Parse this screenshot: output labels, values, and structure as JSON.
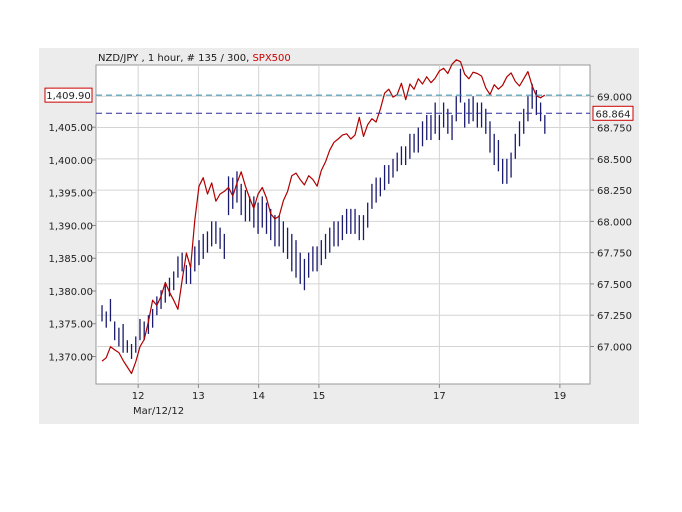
{
  "header": {
    "symbol": "NZD/JPY",
    "details": " , 1 hour, # 135 / 300, ",
    "compare": "SPX500"
  },
  "colors": {
    "price_bars": "#1a1a6e",
    "compare_line": "#b00000",
    "panel_bg": "#ececec",
    "plot_bg": "#ffffff",
    "grid": "#d4d4d4",
    "left_last_line": "#2f8ba8",
    "right_last_line": "#2b2b9a",
    "badge_border": "#cc0000"
  },
  "chart_data": {
    "type": "line",
    "title": "NZD/JPY , 1 hour, # 135 / 300, SPX500",
    "xlabel": "",
    "ylabel": "",
    "grid": true,
    "x_tick_labels": [
      "12",
      "13",
      "14",
      "15",
      "17",
      "19"
    ],
    "x_date_label": "Mar/12/12",
    "x_range": [
      11.3,
      19.5
    ],
    "y_left": {
      "range": [
        1365.8,
        1414.5
      ],
      "ticks": [
        1370.0,
        1375.0,
        1380.0,
        1385.0,
        1390.0,
        1395.0,
        1400.0,
        1405.0
      ],
      "tick_labels": [
        "1,370.00",
        "1,375.00",
        "1,380.00",
        "1,385.00",
        "1,390.00",
        "1,395.00",
        "1,400.00",
        "1,405.00"
      ],
      "last_value": 1409.9,
      "last_label": "1,409.90"
    },
    "y_right": {
      "range": [
        66.7,
        69.25
      ],
      "ticks": [
        67.0,
        67.25,
        67.5,
        67.75,
        68.0,
        68.25,
        68.5,
        68.75,
        69.0
      ],
      "tick_labels": [
        "67.000",
        "67.250",
        "67.500",
        "67.750",
        "68.000",
        "68.250",
        "68.500",
        "68.750",
        "69.000"
      ],
      "last_value": 68.864,
      "last_label": "68.864"
    },
    "series": [
      {
        "axis": "right",
        "style": "bars",
        "x": [
          11.4,
          11.47,
          11.54,
          11.61,
          11.68,
          11.75,
          11.82,
          11.89,
          11.96,
          12.03,
          12.1,
          12.17,
          12.24,
          12.31,
          12.38,
          12.45,
          12.52,
          12.59,
          12.66,
          12.73,
          12.8,
          12.87,
          12.94,
          13.01,
          13.08,
          13.15,
          13.22,
          13.29,
          13.36,
          13.43,
          13.5,
          13.57,
          13.64,
          13.71,
          13.78,
          13.85,
          13.92,
          13.99,
          14.06,
          14.13,
          14.2,
          14.27,
          14.34,
          14.41,
          14.48,
          14.55,
          14.62,
          14.69,
          14.76,
          14.83,
          14.9,
          14.97,
          15.04,
          15.11,
          15.18,
          15.25,
          15.32,
          15.39,
          15.46,
          15.53,
          15.6,
          15.67,
          15.74,
          15.81,
          15.88,
          15.95,
          16.02,
          16.09,
          16.16,
          16.23,
          16.3,
          16.37,
          16.44,
          16.51,
          16.58,
          16.65,
          16.72,
          16.79,
          16.86,
          16.93,
          17.0,
          17.07,
          17.14,
          17.21,
          17.28,
          17.35,
          17.42,
          17.49,
          17.56,
          17.63,
          17.7,
          17.77,
          17.84,
          17.91,
          17.98,
          18.05,
          18.12,
          18.19,
          18.26,
          18.33,
          18.4,
          18.47,
          18.54,
          18.61,
          18.68,
          18.75
        ],
        "high": [
          67.33,
          67.28,
          67.38,
          67.2,
          67.15,
          67.18,
          67.05,
          67.02,
          67.08,
          67.22,
          67.2,
          67.25,
          67.3,
          67.4,
          67.45,
          67.5,
          67.55,
          67.6,
          67.72,
          67.75,
          67.65,
          67.65,
          67.8,
          67.85,
          67.9,
          67.92,
          68.0,
          68.0,
          67.95,
          67.9,
          68.36,
          68.35,
          68.4,
          68.3,
          68.25,
          68.2,
          68.2,
          68.15,
          68.2,
          68.15,
          68.1,
          68.05,
          68.05,
          68.0,
          67.95,
          67.9,
          67.85,
          67.75,
          67.7,
          67.75,
          67.8,
          67.8,
          67.85,
          67.9,
          67.95,
          68.0,
          68.0,
          68.05,
          68.1,
          68.1,
          68.1,
          68.05,
          68.05,
          68.15,
          68.3,
          68.35,
          68.35,
          68.45,
          68.45,
          68.5,
          68.55,
          68.6,
          68.6,
          68.7,
          68.7,
          68.75,
          68.8,
          68.85,
          68.85,
          68.95,
          68.85,
          68.95,
          68.9,
          68.85,
          69.0,
          69.22,
          68.95,
          68.98,
          69.0,
          68.95,
          68.95,
          68.9,
          68.8,
          68.7,
          68.65,
          68.5,
          68.5,
          68.55,
          68.7,
          68.8,
          68.9,
          69.0,
          69.1,
          69.05,
          68.95,
          68.85
        ],
        "low": [
          67.2,
          67.15,
          67.2,
          67.05,
          67.0,
          66.95,
          66.95,
          66.9,
          66.95,
          67.05,
          67.05,
          67.1,
          67.15,
          67.25,
          67.3,
          67.35,
          67.4,
          67.45,
          67.55,
          67.6,
          67.5,
          67.5,
          67.6,
          67.65,
          67.7,
          67.75,
          67.8,
          67.82,
          67.78,
          67.7,
          68.05,
          68.1,
          68.15,
          68.05,
          68.0,
          68.0,
          67.95,
          67.9,
          67.95,
          67.9,
          67.85,
          67.8,
          67.8,
          67.75,
          67.7,
          67.6,
          67.55,
          67.5,
          67.45,
          67.55,
          67.6,
          67.6,
          67.65,
          67.7,
          67.75,
          67.8,
          67.8,
          67.85,
          67.9,
          67.9,
          67.9,
          67.85,
          67.85,
          67.95,
          68.1,
          68.15,
          68.2,
          68.25,
          68.3,
          68.35,
          68.4,
          68.45,
          68.45,
          68.5,
          68.55,
          68.55,
          68.6,
          68.65,
          68.65,
          68.7,
          68.65,
          68.75,
          68.7,
          68.65,
          68.8,
          68.95,
          68.75,
          68.78,
          68.8,
          68.75,
          68.75,
          68.7,
          68.55,
          68.45,
          68.4,
          68.3,
          68.3,
          68.35,
          68.5,
          68.6,
          68.7,
          68.8,
          68.9,
          68.85,
          68.8,
          68.7
        ]
      },
      {
        "axis": "left",
        "style": "line",
        "name": "SPX500",
        "x": [
          11.4,
          11.47,
          11.54,
          11.61,
          11.68,
          11.75,
          11.82,
          11.89,
          11.96,
          12.03,
          12.1,
          12.17,
          12.24,
          12.31,
          12.38,
          12.45,
          12.52,
          12.59,
          12.66,
          12.73,
          12.8,
          12.87,
          12.94,
          13.01,
          13.08,
          13.15,
          13.22,
          13.29,
          13.36,
          13.43,
          13.5,
          13.57,
          13.64,
          13.71,
          13.78,
          13.85,
          13.92,
          13.99,
          14.06,
          14.13,
          14.2,
          14.27,
          14.34,
          14.41,
          14.48,
          14.55,
          14.62,
          14.69,
          14.76,
          14.83,
          14.9,
          14.97,
          15.04,
          15.11,
          15.18,
          15.25,
          15.32,
          15.39,
          15.46,
          15.53,
          15.6,
          15.67,
          15.74,
          15.81,
          15.88,
          15.95,
          16.02,
          16.09,
          16.16,
          16.23,
          16.3,
          16.37,
          16.44,
          16.51,
          16.58,
          16.65,
          16.72,
          16.79,
          16.86,
          16.93,
          17.0,
          17.07,
          17.14,
          17.21,
          17.28,
          17.35,
          17.42,
          17.49,
          17.56,
          17.63,
          17.7,
          17.77,
          17.84,
          17.91,
          17.98,
          18.05,
          18.12,
          18.19,
          18.26,
          18.33,
          18.4,
          18.47,
          18.54,
          18.61,
          18.68,
          18.75
        ],
        "values": [
          1369.3,
          1369.8,
          1371.5,
          1371.0,
          1370.6,
          1369.4,
          1368.4,
          1367.4,
          1369.2,
          1371.5,
          1372.6,
          1375.3,
          1378.6,
          1377.8,
          1379.2,
          1381.3,
          1379.8,
          1378.6,
          1377.2,
          1381.6,
          1385.8,
          1383.6,
          1390.8,
          1396.0,
          1397.3,
          1394.8,
          1396.5,
          1393.7,
          1394.8,
          1395.2,
          1395.8,
          1394.5,
          1396.5,
          1398.2,
          1396.0,
          1394.2,
          1392.6,
          1394.8,
          1395.8,
          1394.2,
          1391.8,
          1391.0,
          1391.4,
          1393.8,
          1395.2,
          1397.6,
          1398.0,
          1397.0,
          1396.2,
          1397.6,
          1397.0,
          1396.0,
          1398.4,
          1399.7,
          1401.5,
          1402.7,
          1403.2,
          1403.8,
          1404.0,
          1403.2,
          1403.8,
          1406.5,
          1403.6,
          1405.4,
          1406.3,
          1405.8,
          1407.8,
          1410.2,
          1410.8,
          1409.6,
          1410.0,
          1411.7,
          1409.2,
          1411.6,
          1410.8,
          1412.4,
          1411.6,
          1412.7,
          1411.8,
          1412.5,
          1413.6,
          1414.0,
          1413.2,
          1414.6,
          1415.3,
          1415.0,
          1413.1,
          1412.4,
          1413.4,
          1413.2,
          1412.8,
          1411.0,
          1410.0,
          1411.5,
          1410.8,
          1411.4,
          1412.7,
          1413.3,
          1412.0,
          1411.3,
          1412.4,
          1413.5,
          1411.3,
          1409.8,
          1409.5,
          1409.9
        ]
      }
    ]
  }
}
